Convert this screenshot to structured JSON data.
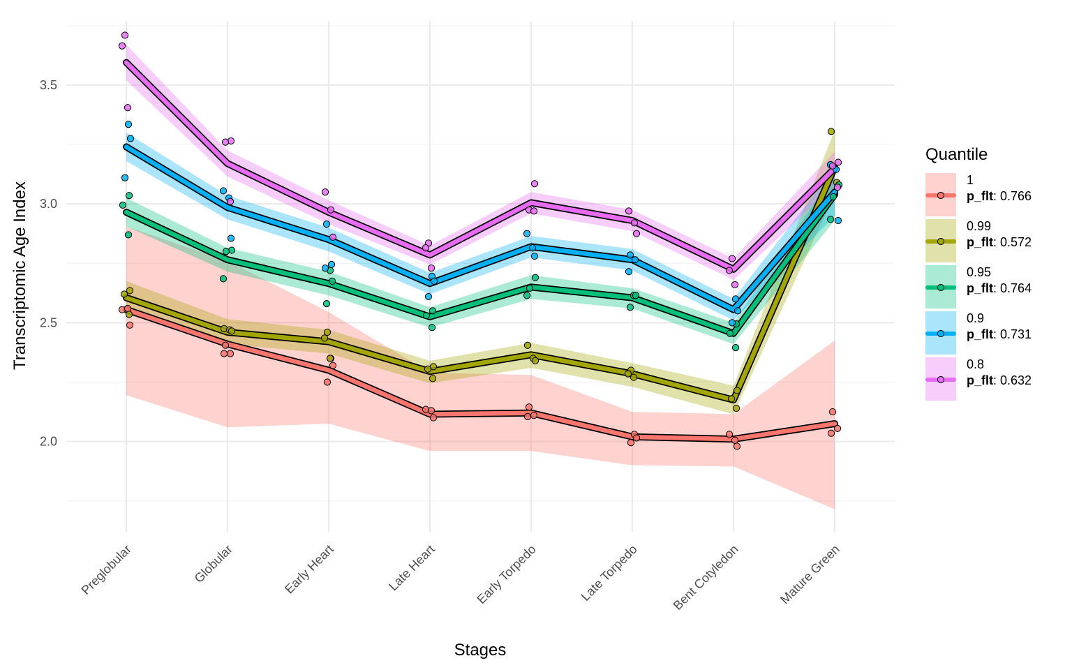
{
  "chart_data": {
    "type": "line",
    "xlabel": "Stages",
    "ylabel": "Transcriptomic Age Index",
    "categories": [
      "Preglobular",
      "Globular",
      "Early Heart",
      "Late Heart",
      "Early Torpedo",
      "Late Torpedo",
      "Bent Cotyledon",
      "Mature Green"
    ],
    "y_ticks": [
      "2.0",
      "2.5",
      "3.0",
      "3.5"
    ],
    "ylim": [
      1.62,
      3.77
    ],
    "grid": true,
    "legend": {
      "title": "Quantile",
      "placement": "right",
      "stat_label": "p_flt"
    },
    "series": [
      {
        "name": "1",
        "p_flt": "0.766",
        "color": "#F8766D",
        "values": [
          2.555,
          2.41,
          2.3,
          2.115,
          2.12,
          2.02,
          2.01,
          2.075
        ],
        "ribbon_low": [
          2.195,
          2.06,
          2.075,
          1.96,
          1.96,
          1.9,
          1.895,
          1.715
        ],
        "ribbon_high": [
          2.905,
          2.76,
          2.545,
          2.29,
          2.28,
          2.125,
          2.115,
          2.425
        ],
        "points": [
          [
            0,
            2.555
          ],
          [
            0,
            2.56
          ],
          [
            0,
            2.49
          ],
          [
            1,
            2.405
          ],
          [
            1,
            2.37
          ],
          [
            1,
            2.37
          ],
          [
            2,
            2.35
          ],
          [
            2,
            2.32
          ],
          [
            2,
            2.25
          ],
          [
            3,
            2.135
          ],
          [
            3,
            2.13
          ],
          [
            3,
            2.1
          ],
          [
            4,
            2.145
          ],
          [
            4,
            2.11
          ],
          [
            4,
            2.105
          ],
          [
            5,
            2.03
          ],
          [
            5,
            2.015
          ],
          [
            5,
            1.995
          ],
          [
            6,
            2.03
          ],
          [
            6,
            2.005
          ],
          [
            6,
            1.98
          ],
          [
            7,
            2.125
          ],
          [
            7,
            2.055
          ],
          [
            7,
            2.035
          ]
        ]
      },
      {
        "name": "0.99",
        "p_flt": "0.572",
        "color": "#A3A500",
        "values": [
          2.605,
          2.46,
          2.42,
          2.295,
          2.365,
          2.285,
          2.175,
          3.155
        ],
        "ribbon_low": [
          2.535,
          2.41,
          2.37,
          2.245,
          2.31,
          2.23,
          2.115,
          3.04
        ],
        "ribbon_high": [
          2.675,
          2.515,
          2.47,
          2.34,
          2.415,
          2.33,
          2.235,
          3.31
        ],
        "points": [
          [
            0,
            2.635
          ],
          [
            0,
            2.62
          ],
          [
            0,
            2.535
          ],
          [
            1,
            2.475
          ],
          [
            1,
            2.47
          ],
          [
            1,
            2.465
          ],
          [
            2,
            2.46
          ],
          [
            2,
            2.435
          ],
          [
            2,
            2.35
          ],
          [
            3,
            2.315
          ],
          [
            3,
            2.305
          ],
          [
            3,
            2.265
          ],
          [
            4,
            2.405
          ],
          [
            4,
            2.35
          ],
          [
            4,
            2.34
          ],
          [
            5,
            2.3
          ],
          [
            5,
            2.285
          ],
          [
            5,
            2.27
          ],
          [
            6,
            2.215
          ],
          [
            6,
            2.18
          ],
          [
            6,
            2.14
          ],
          [
            7,
            3.305
          ],
          [
            7,
            3.09
          ],
          [
            7,
            3.08
          ]
        ]
      },
      {
        "name": "0.95",
        "p_flt": "0.764",
        "color": "#00BF7D",
        "values": [
          2.965,
          2.765,
          2.665,
          2.525,
          2.65,
          2.605,
          2.455,
          3.04
        ],
        "ribbon_low": [
          2.905,
          2.715,
          2.615,
          2.48,
          2.6,
          2.56,
          2.41,
          2.93
        ],
        "ribbon_high": [
          3.025,
          2.815,
          2.715,
          2.565,
          2.7,
          2.645,
          2.5,
          3.13
        ],
        "points": [
          [
            0,
            3.035
          ],
          [
            0,
            2.995
          ],
          [
            0,
            2.87
          ],
          [
            1,
            2.805
          ],
          [
            1,
            2.8
          ],
          [
            1,
            2.685
          ],
          [
            2,
            2.72
          ],
          [
            2,
            2.675
          ],
          [
            2,
            2.58
          ],
          [
            3,
            2.55
          ],
          [
            3,
            2.53
          ],
          [
            3,
            2.48
          ],
          [
            4,
            2.69
          ],
          [
            4,
            2.645
          ],
          [
            4,
            2.615
          ],
          [
            5,
            2.615
          ],
          [
            5,
            2.615
          ],
          [
            5,
            2.565
          ],
          [
            6,
            2.495
          ],
          [
            6,
            2.455
          ],
          [
            6,
            2.395
          ],
          [
            7,
            3.08
          ],
          [
            7,
            3.03
          ],
          [
            7,
            2.935
          ]
        ]
      },
      {
        "name": "0.9",
        "p_flt": "0.731",
        "color": "#00B0F6",
        "values": [
          3.24,
          2.985,
          2.85,
          2.665,
          2.82,
          2.765,
          2.555,
          3.05
        ],
        "ribbon_low": [
          3.18,
          2.935,
          2.8,
          2.62,
          2.775,
          2.72,
          2.51,
          2.95
        ],
        "ribbon_high": [
          3.3,
          3.035,
          2.9,
          2.71,
          2.865,
          2.81,
          2.6,
          3.15
        ],
        "points": [
          [
            0,
            3.335
          ],
          [
            0,
            3.275
          ],
          [
            0,
            3.11
          ],
          [
            1,
            3.055
          ],
          [
            1,
            3.025
          ],
          [
            1,
            2.855
          ],
          [
            2,
            2.915
          ],
          [
            2,
            2.745
          ],
          [
            2,
            2.73
          ],
          [
            3,
            2.695
          ],
          [
            3,
            2.675
          ],
          [
            3,
            2.61
          ],
          [
            4,
            2.875
          ],
          [
            4,
            2.815
          ],
          [
            4,
            2.78
          ],
          [
            5,
            2.785
          ],
          [
            5,
            2.765
          ],
          [
            5,
            2.715
          ],
          [
            6,
            2.6
          ],
          [
            6,
            2.55
          ],
          [
            6,
            2.5
          ],
          [
            7,
            3.165
          ],
          [
            7,
            3.145
          ],
          [
            7,
            2.93
          ]
        ]
      },
      {
        "name": "0.8",
        "p_flt": "0.632",
        "color": "#E76BF3",
        "values": [
          3.595,
          3.17,
          2.965,
          2.785,
          3.005,
          2.93,
          2.725,
          3.15
        ],
        "ribbon_low": [
          3.52,
          3.115,
          2.915,
          2.745,
          2.96,
          2.885,
          2.68,
          3.08
        ],
        "ribbon_high": [
          3.67,
          3.225,
          3.015,
          2.825,
          3.05,
          2.975,
          2.77,
          3.22
        ],
        "points": [
          [
            0,
            3.71
          ],
          [
            0,
            3.665
          ],
          [
            0,
            3.405
          ],
          [
            1,
            3.265
          ],
          [
            1,
            3.26
          ],
          [
            1,
            3.01
          ],
          [
            2,
            3.05
          ],
          [
            2,
            2.975
          ],
          [
            2,
            2.86
          ],
          [
            3,
            2.835
          ],
          [
            3,
            2.815
          ],
          [
            3,
            2.73
          ],
          [
            4,
            3.085
          ],
          [
            4,
            2.975
          ],
          [
            4,
            2.97
          ],
          [
            5,
            2.97
          ],
          [
            5,
            2.92
          ],
          [
            5,
            2.875
          ],
          [
            6,
            2.77
          ],
          [
            6,
            2.72
          ],
          [
            6,
            2.66
          ],
          [
            7,
            3.175
          ],
          [
            7,
            3.16
          ],
          [
            7,
            3.07
          ]
        ]
      }
    ]
  }
}
